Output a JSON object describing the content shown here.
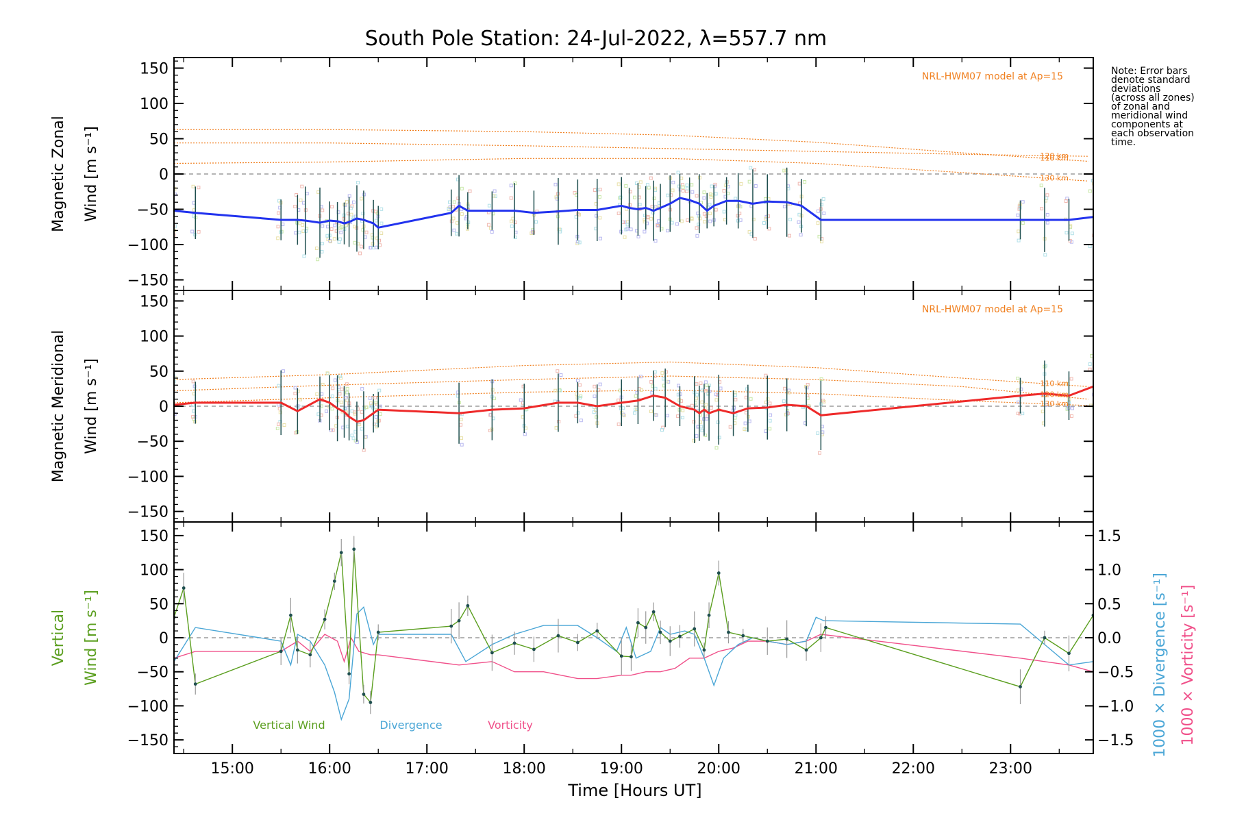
{
  "title": "South Pole Station: 24-Jul-2022, λ=557.7 nm",
  "note": [
    "Note: Error bars",
    "denote standard",
    "deviations",
    "(across all zones)",
    "of zonal and",
    "meridional wind",
    "components at",
    "each observation",
    "time."
  ],
  "colors": {
    "zonal": "#2233ee",
    "meridional": "#ee2a2a",
    "vertical": "#5a9e1e",
    "divergence": "#4aa6d6",
    "vorticity": "#f0508a",
    "model": "#f07f1e",
    "axis": "#000000",
    "zero": "#888888",
    "errbar": "#1f4f4f",
    "scatter": [
      "#b8b8f0",
      "#f0b8b0",
      "#b0e0e8",
      "#e8e0a8",
      "#c8e8a8"
    ]
  },
  "chart_data": [
    {
      "type": "line",
      "name": "zonal",
      "ylabel": [
        "Magnetic Zonal",
        "Wind [m s⁻¹]"
      ],
      "ylim": [
        -165,
        165
      ],
      "yticks": [
        150,
        100,
        50,
        0,
        -50,
        -100,
        -150
      ],
      "model_label": "NRL-HWM07 model at Ap=15",
      "model_lines": [
        {
          "label": "110 km",
          "x": [
            14.4,
            16,
            18,
            19.5,
            21,
            22.5,
            23.8
          ],
          "y": [
            63,
            63,
            60,
            55,
            45,
            30,
            18
          ]
        },
        {
          "label": "120 km",
          "x": [
            14.4,
            16,
            18,
            19.5,
            21,
            22.5,
            23.8
          ],
          "y": [
            44,
            44,
            40,
            36,
            32,
            28,
            25
          ]
        },
        {
          "label": "130 km",
          "x": [
            14.4,
            16,
            18,
            19.5,
            21,
            22.5,
            23.8
          ],
          "y": [
            15,
            17,
            22,
            22,
            15,
            2,
            -10
          ]
        }
      ],
      "series": [
        {
          "name": "Zonal wind",
          "x": [
            14.4,
            14.62,
            15.5,
            15.67,
            15.75,
            15.9,
            16.0,
            16.08,
            16.15,
            16.2,
            16.28,
            16.35,
            16.45,
            16.5,
            17.25,
            17.33,
            17.42,
            17.67,
            17.9,
            18.1,
            18.35,
            18.55,
            18.75,
            19.0,
            19.08,
            19.17,
            19.25,
            19.33,
            19.4,
            19.5,
            19.6,
            19.7,
            19.8,
            19.88,
            19.95,
            20.08,
            20.2,
            20.35,
            20.5,
            20.7,
            20.85,
            21.05,
            23.1,
            23.35,
            23.6,
            23.85
          ],
          "y": [
            -52,
            -55,
            -65,
            -65,
            -66,
            -69,
            -66,
            -67,
            -70,
            -68,
            -63,
            -65,
            -70,
            -76,
            -55,
            -45,
            -52,
            -52,
            -52,
            -55,
            -53,
            -51,
            -51,
            -45,
            -48,
            -50,
            -48,
            -52,
            -48,
            -42,
            -34,
            -37,
            -42,
            -52,
            -45,
            -38,
            -38,
            -42,
            -39,
            -40,
            -45,
            -65,
            -65,
            -65,
            -65,
            -61
          ]
        }
      ]
    },
    {
      "type": "line",
      "name": "meridional",
      "ylabel": [
        "Magnetic Meridional",
        "Wind [m s⁻¹]"
      ],
      "ylim": [
        -165,
        165
      ],
      "yticks": [
        150,
        100,
        50,
        0,
        -50,
        -100,
        -150
      ],
      "model_label": "NRL-HWM07 model at Ap=15",
      "model_lines": [
        {
          "label": "110 km",
          "x": [
            14.4,
            16,
            18,
            19.5,
            21,
            22.5,
            23.8
          ],
          "y": [
            38,
            45,
            58,
            63,
            55,
            40,
            28
          ]
        },
        {
          "label": "120 km",
          "x": [
            14.4,
            16,
            18,
            19.5,
            21,
            22.5,
            23.8
          ],
          "y": [
            22,
            30,
            38,
            43,
            38,
            28,
            10
          ]
        },
        {
          "label": "130 km",
          "x": [
            14.4,
            16,
            18,
            19.5,
            21,
            22.5,
            23.8
          ],
          "y": [
            5,
            12,
            20,
            23,
            18,
            8,
            1
          ]
        }
      ],
      "series": [
        {
          "name": "Meridional wind",
          "x": [
            14.4,
            14.62,
            15.5,
            15.67,
            15.9,
            16.0,
            16.08,
            16.15,
            16.2,
            16.28,
            16.35,
            16.45,
            16.5,
            17.33,
            17.67,
            18.0,
            18.35,
            18.55,
            18.75,
            19.0,
            19.17,
            19.33,
            19.45,
            19.6,
            19.75,
            19.8,
            19.85,
            19.9,
            20.0,
            20.15,
            20.3,
            20.5,
            20.7,
            20.9,
            21.05,
            23.1,
            23.35,
            23.6,
            23.85
          ],
          "y": [
            2,
            5,
            5,
            -7,
            10,
            5,
            -3,
            -8,
            -15,
            -22,
            -20,
            -10,
            -5,
            -10,
            -5,
            -3,
            5,
            5,
            0,
            5,
            8,
            15,
            12,
            0,
            -5,
            -10,
            -5,
            -10,
            -5,
            -10,
            -3,
            -2,
            2,
            0,
            -13,
            15,
            18,
            15,
            28
          ]
        }
      ]
    },
    {
      "type": "line",
      "name": "vertical",
      "ylabel": [
        "Vertical",
        "Wind [m s⁻¹]"
      ],
      "ylim": [
        -170,
        170
      ],
      "yticks": [
        150,
        100,
        50,
        0,
        -50,
        -100,
        -150
      ],
      "y2label_div": "1000 × Divergence [s⁻¹]",
      "y2label_vort": "1000 × Vorticity [s⁻¹]",
      "y2lim": [
        -1.7,
        1.7
      ],
      "y2ticks": [
        1.5,
        1.0,
        0.5,
        0.0,
        -0.5,
        -1.0,
        -1.5
      ],
      "y2ticklabels": [
        "1.5",
        "1.0",
        "0.5",
        "0.0",
        "−0.5",
        "−1.0",
        "−1.5"
      ],
      "legend": [
        "Vertical Wind",
        "Divergence",
        "Vorticity"
      ],
      "series": [
        {
          "name": "Vertical Wind",
          "axis": "left",
          "x": [
            14.4,
            14.5,
            14.62,
            15.5,
            15.6,
            15.67,
            15.8,
            15.95,
            16.05,
            16.12,
            16.2,
            16.25,
            16.35,
            16.42,
            16.5,
            17.25,
            17.33,
            17.42,
            17.67,
            17.9,
            18.1,
            18.35,
            18.55,
            18.75,
            19.0,
            19.1,
            19.17,
            19.25,
            19.33,
            19.4,
            19.5,
            19.6,
            19.75,
            19.85,
            19.9,
            20.0,
            20.1,
            20.25,
            20.5,
            20.7,
            20.9,
            21.05,
            21.1,
            23.1,
            23.35,
            23.6,
            23.85
          ],
          "y": [
            30,
            73,
            -68,
            -20,
            33,
            -18,
            -25,
            27,
            83,
            125,
            -53,
            130,
            -83,
            -95,
            8,
            17,
            25,
            47,
            -22,
            -8,
            -17,
            3,
            -7,
            10,
            -27,
            -28,
            22,
            15,
            38,
            8,
            -5,
            2,
            13,
            -18,
            33,
            95,
            8,
            3,
            -5,
            -2,
            -18,
            0,
            15,
            -72,
            0,
            -23,
            33
          ]
        },
        {
          "name": "Divergence",
          "axis": "right",
          "x": [
            14.4,
            14.62,
            15.5,
            15.6,
            15.67,
            15.8,
            15.95,
            16.05,
            16.12,
            16.2,
            16.28,
            16.35,
            16.45,
            16.5,
            17.25,
            17.4,
            17.67,
            17.9,
            18.2,
            18.55,
            18.75,
            18.95,
            19.05,
            19.15,
            19.3,
            19.4,
            19.5,
            19.65,
            19.75,
            19.85,
            19.95,
            20.05,
            20.2,
            20.35,
            20.5,
            20.7,
            20.9,
            21.0,
            21.08,
            23.1,
            23.35,
            23.6,
            23.85
          ],
          "y": [
            -0.35,
            0.15,
            -0.05,
            -0.4,
            0.05,
            -0.05,
            -0.4,
            -0.8,
            -1.2,
            -0.9,
            0.35,
            0.45,
            -0.1,
            0.05,
            0.05,
            -0.35,
            -0.1,
            0.05,
            0.18,
            0.18,
            0.0,
            -0.2,
            0.15,
            -0.3,
            -0.2,
            0.15,
            0.05,
            0.1,
            0.05,
            -0.3,
            -0.7,
            -0.3,
            -0.1,
            0.0,
            -0.05,
            -0.1,
            -0.05,
            0.3,
            0.25,
            0.2,
            -0.1,
            -0.4,
            -0.35
          ]
        },
        {
          "name": "Vorticity",
          "axis": "right",
          "x": [
            14.4,
            14.62,
            15.5,
            15.67,
            15.8,
            15.95,
            16.08,
            16.15,
            16.22,
            16.3,
            16.42,
            16.5,
            17.33,
            17.67,
            17.9,
            18.2,
            18.55,
            18.75,
            19.0,
            19.1,
            19.25,
            19.4,
            19.55,
            19.7,
            19.85,
            20.0,
            20.15,
            20.3,
            20.5,
            20.7,
            20.9,
            21.05,
            23.1,
            23.35,
            23.6,
            23.85
          ],
          "y": [
            -0.3,
            -0.2,
            -0.2,
            -0.05,
            -0.2,
            0.05,
            -0.05,
            -0.35,
            0.0,
            -0.2,
            -0.25,
            -0.25,
            -0.4,
            -0.35,
            -0.5,
            -0.5,
            -0.6,
            -0.6,
            -0.55,
            -0.55,
            -0.5,
            -0.5,
            -0.45,
            -0.3,
            -0.3,
            -0.2,
            -0.15,
            -0.05,
            -0.05,
            -0.1,
            -0.05,
            0.05,
            -0.3,
            -0.35,
            -0.4,
            -0.5
          ]
        }
      ]
    }
  ],
  "xaxis": {
    "range": [
      14.4,
      23.85
    ],
    "ticks": [
      15,
      16,
      17,
      18,
      19,
      20,
      21,
      22,
      23
    ],
    "ticklabels": [
      "15:00",
      "16:00",
      "17:00",
      "18:00",
      "19:00",
      "20:00",
      "21:00",
      "22:00",
      "23:00"
    ],
    "label": "Time [Hours UT]"
  }
}
